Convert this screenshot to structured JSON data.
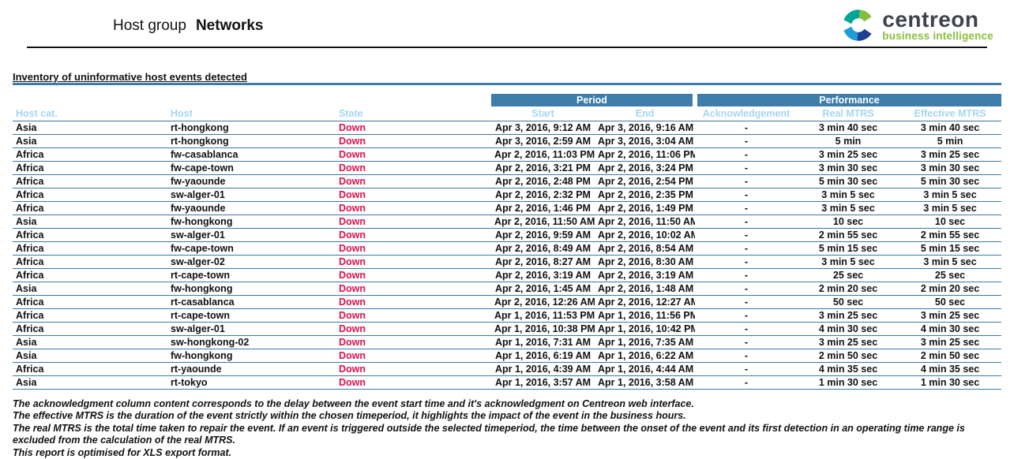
{
  "header": {
    "title_prefix": "Host group",
    "title_name": "Networks",
    "logo": {
      "brand": "centreon",
      "tagline": "business intelligence"
    }
  },
  "section": {
    "title": "Inventory of uninformative host events detected"
  },
  "table": {
    "group_headers": [
      {
        "label": "Period"
      },
      {
        "label": "Performance"
      }
    ],
    "columns": [
      "Host cat.",
      "Host",
      "State",
      "Start",
      "End",
      "Acknowledgement",
      "Real MTRS",
      "Effective MTRS"
    ],
    "column_keys": [
      "host-cat",
      "host",
      "state",
      "start",
      "end",
      "acknowledgement",
      "real-mtrs",
      "effective-mtrs"
    ],
    "rows": [
      [
        "Asia",
        "rt-hongkong",
        "Down",
        "Apr 3, 2016, 9:12 AM",
        "Apr 3, 2016, 9:16 AM",
        "-",
        "3 min 40 sec",
        "3 min 40 sec"
      ],
      [
        "Asia",
        "rt-hongkong",
        "Down",
        "Apr 3, 2016, 2:59 AM",
        "Apr 3, 2016, 3:04 AM",
        "-",
        "5 min",
        "5 min"
      ],
      [
        "Africa",
        "fw-casablanca",
        "Down",
        "Apr 2, 2016, 11:03 PM",
        "Apr 2, 2016, 11:06 PM",
        "-",
        "3 min 25 sec",
        "3 min 25 sec"
      ],
      [
        "Africa",
        "fw-cape-town",
        "Down",
        "Apr 2, 2016, 3:21 PM",
        "Apr 2, 2016, 3:24 PM",
        "-",
        "3 min 30 sec",
        "3 min 30 sec"
      ],
      [
        "Africa",
        "fw-yaounde",
        "Down",
        "Apr 2, 2016, 2:48 PM",
        "Apr 2, 2016, 2:54 PM",
        "-",
        "5 min 30 sec",
        "5 min 30 sec"
      ],
      [
        "Africa",
        "sw-alger-01",
        "Down",
        "Apr 2, 2016, 2:32 PM",
        "Apr 2, 2016, 2:35 PM",
        "-",
        "3 min 5 sec",
        "3 min 5 sec"
      ],
      [
        "Africa",
        "fw-yaounde",
        "Down",
        "Apr 2, 2016, 1:46 PM",
        "Apr 2, 2016, 1:49 PM",
        "-",
        "3 min 5 sec",
        "3 min 5 sec"
      ],
      [
        "Asia",
        "fw-hongkong",
        "Down",
        "Apr 2, 2016, 11:50 AM",
        "Apr 2, 2016, 11:50 AM",
        "-",
        "10 sec",
        "10 sec"
      ],
      [
        "Africa",
        "sw-alger-01",
        "Down",
        "Apr 2, 2016, 9:59 AM",
        "Apr 2, 2016, 10:02 AM",
        "-",
        "2 min 55 sec",
        "2 min 55 sec"
      ],
      [
        "Africa",
        "fw-cape-town",
        "Down",
        "Apr 2, 2016, 8:49 AM",
        "Apr 2, 2016, 8:54 AM",
        "-",
        "5 min 15 sec",
        "5 min 15 sec"
      ],
      [
        "Africa",
        "sw-alger-02",
        "Down",
        "Apr 2, 2016, 8:27 AM",
        "Apr 2, 2016, 8:30 AM",
        "-",
        "3 min 5 sec",
        "3 min 5 sec"
      ],
      [
        "Africa",
        "rt-cape-town",
        "Down",
        "Apr 2, 2016, 3:19 AM",
        "Apr 2, 2016, 3:19 AM",
        "-",
        "25 sec",
        "25 sec"
      ],
      [
        "Asia",
        "fw-hongkong",
        "Down",
        "Apr 2, 2016, 1:45 AM",
        "Apr 2, 2016, 1:48 AM",
        "-",
        "2 min 20 sec",
        "2 min 20 sec"
      ],
      [
        "Africa",
        "rt-casablanca",
        "Down",
        "Apr 2, 2016, 12:26 AM",
        "Apr 2, 2016, 12:27 AM",
        "-",
        "50 sec",
        "50 sec"
      ],
      [
        "Africa",
        "rt-cape-town",
        "Down",
        "Apr 1, 2016, 11:53 PM",
        "Apr 1, 2016, 11:56 PM",
        "-",
        "3 min 25 sec",
        "3 min 25 sec"
      ],
      [
        "Africa",
        "sw-alger-01",
        "Down",
        "Apr 1, 2016, 10:38 PM",
        "Apr 1, 2016, 10:42 PM",
        "-",
        "4 min 30 sec",
        "4 min 30 sec"
      ],
      [
        "Asia",
        "sw-hongkong-02",
        "Down",
        "Apr 1, 2016, 7:31 AM",
        "Apr 1, 2016, 7:35 AM",
        "-",
        "3 min 25 sec",
        "3 min 25 sec"
      ],
      [
        "Asia",
        "fw-hongkong",
        "Down",
        "Apr 1, 2016, 6:19 AM",
        "Apr 1, 2016, 6:22 AM",
        "-",
        "2 min 50 sec",
        "2 min 50 sec"
      ],
      [
        "Africa",
        "rt-yaounde",
        "Down",
        "Apr 1, 2016, 4:39 AM",
        "Apr 1, 2016, 4:44 AM",
        "-",
        "4 min 35 sec",
        "4 min 35 sec"
      ],
      [
        "Asia",
        "rt-tokyo",
        "Down",
        "Apr 1, 2016, 3:57 AM",
        "Apr 1, 2016, 3:58 AM",
        "-",
        "1 min 30 sec",
        "1 min 30 sec"
      ]
    ]
  },
  "footnotes": [
    "The acknowledgment column content corresponds to the delay between the event start time and it's acknowledgment on Centreon web interface.",
    "The effective MTRS is the duration of the event strictly within the chosen timeperiod, it highlights the impact of the event in the business hours.",
    "The real MTRS is the total time taken to repair the event. If an event is triggered outside the selected timeperiod, the time between the onset of the event and its first detection in an operating time range  is excluded from the calculation of the real MTRS.",
    "This report is optimised for XLS export format."
  ],
  "colors": {
    "header_bar": "#3d7cab",
    "header_text": "#a6d6f2",
    "separator": "#3a79a8",
    "state_down": "#e0104c",
    "brand_gray": "#3d434d",
    "brand_green": "#8cbf3f"
  }
}
